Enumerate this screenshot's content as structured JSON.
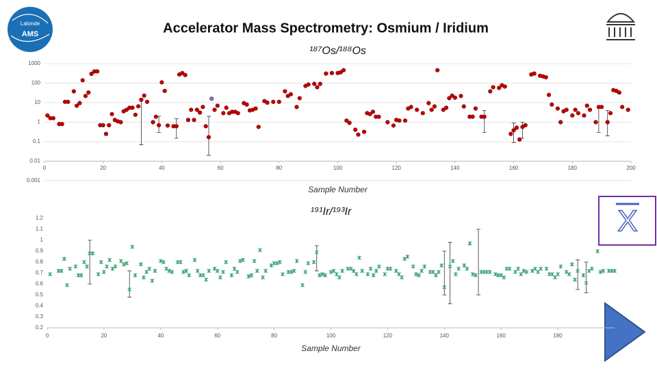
{
  "header": {
    "title": "Accelerator Mass Spectrometry: Osmium / Iridium",
    "logo": [
      "Lalonde",
      "AMS"
    ],
    "xbar_label": "X"
  },
  "chart_data": [
    {
      "type": "scatter",
      "title": "¹⁸⁷Os/¹⁸⁸Os",
      "x_label": "Sample Number",
      "log_y": true,
      "grid": true,
      "xaxis_at": 0.01,
      "xlim": [
        0,
        200
      ],
      "xticks": [
        0,
        20,
        40,
        60,
        80,
        100,
        120,
        140,
        160,
        180,
        200
      ],
      "ylim": [
        0.001,
        1000
      ],
      "yticks": [
        1000,
        100,
        10,
        1,
        0.1,
        0.01,
        0.001
      ],
      "series": [
        {
          "color": "#c00000",
          "x": [
            1,
            2,
            3,
            5,
            6,
            7,
            8,
            10,
            11,
            12,
            13,
            14,
            15,
            16,
            17,
            18,
            19,
            20,
            21,
            22,
            23,
            24,
            25,
            26,
            27,
            28,
            29,
            30,
            31,
            32,
            33,
            34,
            35,
            37,
            38,
            39,
            40,
            41,
            42,
            44,
            45,
            46,
            47,
            48,
            49,
            50,
            51,
            52,
            53,
            54,
            55,
            56,
            58,
            59,
            61,
            62,
            63,
            64,
            65,
            66,
            68,
            69,
            70,
            71,
            72,
            73,
            75,
            76,
            78,
            80,
            82,
            83,
            84,
            86,
            87,
            89,
            90,
            92,
            93,
            94,
            96,
            98,
            100,
            101,
            102,
            103,
            104,
            106,
            107,
            109,
            110,
            111,
            112,
            113,
            114,
            117,
            119,
            120,
            121,
            123,
            124,
            125,
            127,
            129,
            131,
            132,
            133,
            134,
            136,
            137,
            138,
            139,
            140,
            142,
            143,
            145,
            146,
            147,
            149,
            150,
            152,
            153,
            155,
            156,
            157,
            159,
            160,
            161,
            162,
            163,
            164,
            166,
            167,
            169,
            170,
            171,
            172,
            173,
            175,
            176,
            177,
            178,
            180,
            181,
            182,
            184,
            185,
            186,
            188,
            189,
            190,
            192,
            193,
            194,
            195,
            196,
            197,
            199
          ],
          "values": [
            2.2,
            1.6,
            1.6,
            0.8,
            0.8,
            11,
            11,
            38,
            7,
            9.5,
            140,
            22,
            33,
            300,
            400,
            400,
            0.7,
            0.7,
            0.25,
            0.7,
            2.6,
            1.3,
            1.1,
            1,
            3.6,
            4.3,
            5.5,
            5.5,
            2.4,
            6.5,
            14,
            23,
            11,
            1,
            1.9,
            0.7,
            110,
            40,
            0.67,
            0.62,
            0.62,
            280,
            330,
            260,
            1.3,
            4.3,
            1.3,
            4.3,
            3.1,
            6,
            0.62,
            0.17,
            4.3,
            7,
            2.9,
            5.5,
            2.9,
            3.4,
            3.4,
            2.9,
            9.5,
            8,
            4,
            4.3,
            5,
            0.57,
            12,
            10,
            11,
            11,
            38,
            22,
            27,
            6,
            17,
            72,
            85,
            92,
            62,
            92,
            310,
            330,
            330,
            360,
            460,
            1.2,
            0.92,
            0.41,
            0.23,
            0.32,
            2.9,
            2.6,
            3.4,
            1.9,
            1.9,
            1,
            0.67,
            1.3,
            1.2,
            1.2,
            5,
            6,
            4.3,
            2.9,
            9.5,
            4.3,
            6.4,
            460,
            4.3,
            5.5,
            17,
            23,
            18,
            22,
            6.4,
            1.9,
            1.9,
            5,
            1.9,
            1.9,
            38,
            62,
            57,
            78,
            67,
            0.25,
            0.38,
            0.52,
            0.13,
            0.57,
            0.7,
            280,
            310,
            240,
            220,
            200,
            25,
            8,
            5,
            1,
            3.6,
            4.3,
            2.2,
            4.3,
            2.9,
            2.2,
            7,
            4.3,
            1,
            6,
            6,
            1,
            2.9,
            44,
            40,
            33,
            6,
            4.3
          ]
        },
        {
          "color": "#5b8fc9",
          "x": [
            57
          ],
          "values": [
            16
          ]
        }
      ],
      "error_bars": [
        [
          33,
          0.07,
          16
        ],
        [
          39,
          0.3,
          2
        ],
        [
          45,
          0.15,
          1.5
        ],
        [
          56,
          0.02,
          2
        ],
        [
          150,
          0.3,
          4
        ],
        [
          160,
          0.09,
          0.9
        ],
        [
          163,
          0.15,
          1
        ],
        [
          189,
          0.3,
          6
        ],
        [
          192,
          0.2,
          4
        ]
      ]
    },
    {
      "type": "scatter",
      "title": "¹⁹¹Ir/¹⁹³Ir",
      "x_label": "Sample Number",
      "log_y": false,
      "grid": false,
      "xlim": [
        0,
        200
      ],
      "xticks": [
        0,
        20,
        40,
        60,
        80,
        100,
        120,
        140,
        160,
        180
      ],
      "ylim": [
        0.2,
        1.2
      ],
      "yticks": [
        0.2,
        0.3,
        0.4,
        0.5,
        0.6,
        0.7,
        0.8,
        0.9,
        1,
        1.1,
        1.2
      ],
      "series": [
        {
          "color": "#2e9e6a",
          "x": [
            1,
            4,
            5,
            6,
            7,
            8,
            10,
            11,
            12,
            13,
            14,
            15,
            16,
            18,
            19,
            20,
            21,
            22,
            23,
            24,
            26,
            27,
            28,
            29,
            30,
            31,
            33,
            34,
            35,
            36,
            37,
            38,
            40,
            41,
            42,
            43,
            44,
            46,
            47,
            48,
            49,
            50,
            52,
            53,
            54,
            55,
            56,
            57,
            59,
            60,
            61,
            62,
            63,
            65,
            66,
            67,
            68,
            69,
            71,
            72,
            73,
            74,
            75,
            76,
            77,
            79,
            80,
            81,
            82,
            83,
            85,
            86,
            87,
            88,
            90,
            91,
            92,
            94,
            95,
            96,
            97,
            98,
            100,
            101,
            102,
            103,
            104,
            106,
            107,
            108,
            109,
            110,
            111,
            113,
            114,
            115,
            116,
            117,
            119,
            120,
            121,
            123,
            124,
            125,
            126,
            127,
            129,
            130,
            131,
            132,
            133,
            135,
            136,
            137,
            138,
            139,
            140,
            142,
            143,
            144,
            145,
            147,
            148,
            149,
            150,
            151,
            153,
            154,
            155,
            156,
            158,
            159,
            160,
            161,
            162,
            163,
            165,
            166,
            167,
            168,
            169,
            171,
            172,
            173,
            174,
            176,
            177,
            178,
            179,
            180,
            181,
            183,
            184,
            185,
            186,
            187,
            189,
            190,
            191,
            192,
            194,
            195,
            196,
            198,
            199,
            200
          ],
          "values": [
            0.69,
            0.72,
            0.72,
            0.83,
            0.59,
            0.74,
            0.76,
            0.68,
            0.68,
            0.8,
            0.76,
            0.88,
            0.88,
            0.69,
            0.8,
            0.71,
            0.76,
            0.82,
            0.74,
            0.76,
            0.81,
            0.78,
            0.79,
            0.55,
            0.94,
            0.68,
            0.78,
            0.66,
            0.71,
            0.74,
            0.63,
            0.72,
            0.81,
            0.8,
            0.74,
            0.72,
            0.71,
            0.8,
            0.8,
            0.71,
            0.72,
            0.68,
            0.82,
            0.72,
            0.68,
            0.68,
            0.64,
            0.72,
            0.74,
            0.72,
            0.66,
            0.71,
            0.8,
            0.68,
            0.74,
            0.71,
            0.81,
            0.82,
            0.67,
            0.68,
            0.81,
            0.72,
            0.91,
            0.66,
            0.72,
            0.77,
            0.79,
            0.79,
            0.8,
            0.69,
            0.71,
            0.71,
            0.72,
            0.81,
            0.59,
            0.71,
            0.79,
            0.8,
            0.89,
            0.68,
            0.69,
            0.68,
            0.71,
            0.72,
            0.69,
            0.66,
            0.72,
            0.74,
            0.74,
            0.72,
            0.69,
            0.84,
            0.72,
            0.69,
            0.74,
            0.68,
            0.72,
            0.76,
            0.69,
            0.74,
            0.74,
            0.72,
            0.69,
            0.66,
            0.83,
            0.85,
            0.76,
            0.69,
            0.68,
            0.72,
            0.76,
            0.71,
            0.71,
            0.68,
            0.71,
            0.77,
            0.57,
            0.76,
            0.81,
            0.69,
            0.74,
            0.77,
            0.74,
            0.97,
            0.69,
            0.68,
            0.71,
            0.71,
            0.71,
            0.71,
            0.69,
            0.68,
            0.68,
            0.66,
            0.74,
            0.74,
            0.71,
            0.74,
            0.69,
            0.72,
            0.71,
            0.72,
            0.74,
            0.71,
            0.74,
            0.74,
            0.69,
            0.69,
            0.66,
            0.69,
            0.76,
            0.71,
            0.69,
            0.78,
            0.64,
            0.72,
            0.68,
            0.61,
            0.72,
            0.74,
            0.9,
            0.71,
            0.72,
            0.72,
            0.72,
            0.72
          ]
        }
      ],
      "error_bars": [
        [
          15,
          0.6,
          1.0
        ],
        [
          29,
          0.48,
          0.72
        ],
        [
          95,
          0.72,
          0.95
        ],
        [
          140,
          0.5,
          0.9
        ],
        [
          142,
          0.42,
          0.98
        ],
        [
          152,
          0.5,
          1.1
        ],
        [
          187,
          0.55,
          0.82
        ],
        [
          190,
          0.52,
          0.8
        ]
      ]
    }
  ]
}
